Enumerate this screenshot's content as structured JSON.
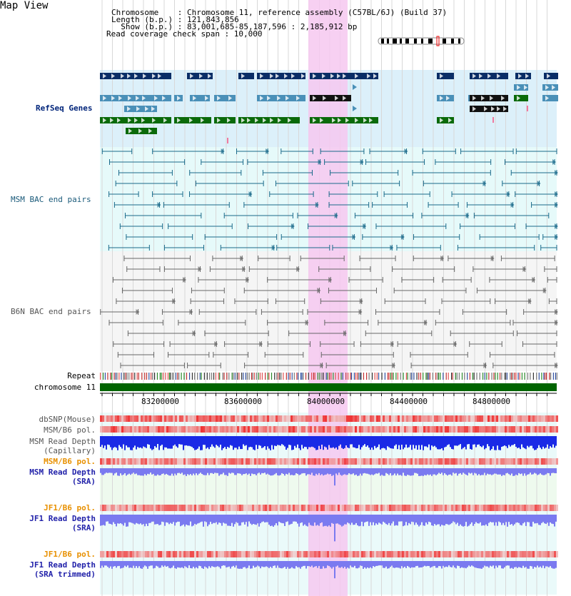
{
  "view": {
    "title": "Map View"
  },
  "header": {
    "chromosome_row": "Chromosome    : Chromosome 11, reference assembly (C57BL/6J) (Build 37)",
    "length_row": "Length (b.p.) : 121,843,856",
    "show_row": "  Show (b.p.) : 83,001,685-85,187,596 : 2,185,912 bp",
    "span_row": "Read coverage check span : 10,000"
  },
  "tracks": {
    "refseq": "RefSeq Genes",
    "msm_bac": "MSM BAC end pairs",
    "b6n_bac": "B6N BAC end pairs",
    "repeat": "Repeat",
    "chromosome": "chromosome 11",
    "dbsnp": "dbSNP(Mouse)",
    "msm_b6_pol_1": "MSM/B6 pol.",
    "msm_depth_cap_1": "MSM Read Depth",
    "msm_depth_cap_2": "(Capillary)",
    "msm_b6_pol_2": "MSM/B6 pol.",
    "msm_depth_sra_1": "MSM Read Depth",
    "msm_depth_sra_2": "(SRA)",
    "jf1_b6_pol_1": "JF1/B6 pol.",
    "jf1_depth_sra_1": "JF1 Read Depth",
    "jf1_depth_sra_2": "(SRA)",
    "jf1_b6_pol_2": "JF1/B6 pol.",
    "jf1_depth_trim_1": "JF1 Read Depth",
    "jf1_depth_trim_2": "(SRA trimmed)"
  },
  "axis": {
    "ticks": [
      "83200000",
      "83600000",
      "84000000",
      "84400000",
      "84800000"
    ]
  },
  "colors": {
    "refseq_dark": "#0a2d66",
    "refseq_mid": "#4a90b8",
    "refseq_green": "#0a6a0a",
    "bac_msm": "#1a6a8a",
    "bac_b6n": "#666666",
    "highlight": "#f6c8f0",
    "chromosome": "#006400",
    "depth_blue": "#1a2ae6",
    "depth_light": "#7a7af0",
    "pol_red": "#e83030",
    "label_navy": "#00247a",
    "label_blue": "#2222aa",
    "label_orange": "#e89000"
  }
}
